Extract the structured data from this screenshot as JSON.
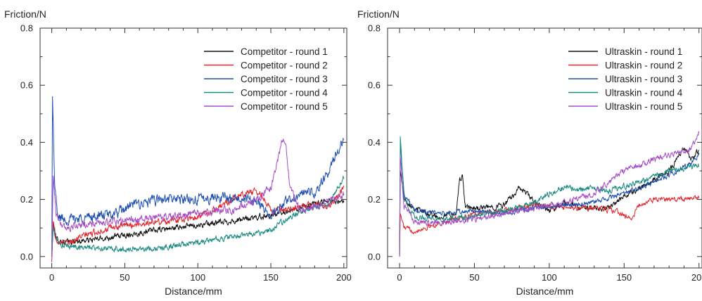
{
  "chart_data": [
    {
      "type": "line",
      "ylabel": "Friction/N",
      "xlabel": "Distance/mm",
      "xlim": [
        -8,
        202
      ],
      "ylim": [
        -0.04,
        0.8
      ],
      "xticks": [
        0,
        50,
        100,
        150,
        200
      ],
      "yticks": [
        0.0,
        0.2,
        0.4,
        0.6,
        0.8
      ],
      "xtick_labels": [
        "0",
        "50",
        "100",
        "150",
        "200"
      ],
      "ytick_labels": [
        "0.0",
        "0.2",
        "0.4",
        "0.6",
        "0.8"
      ],
      "grid": false,
      "legend_position": "top-right",
      "series": [
        {
          "name": "Competitor - round 1",
          "color": "#111111",
          "noise": 0.008,
          "points": [
            [
              0,
              0.0
            ],
            [
              1,
              0.11
            ],
            [
              3,
              0.06
            ],
            [
              10,
              0.05
            ],
            [
              30,
              0.06
            ],
            [
              50,
              0.075
            ],
            [
              75,
              0.095
            ],
            [
              100,
              0.11
            ],
            [
              125,
              0.125
            ],
            [
              150,
              0.145
            ],
            [
              175,
              0.175
            ],
            [
              190,
              0.2
            ],
            [
              200,
              0.19
            ]
          ]
        },
        {
          "name": "Competitor - round 2",
          "color": "#e3262d",
          "noise": 0.009,
          "points": [
            [
              0,
              -0.02
            ],
            [
              1,
              0.13
            ],
            [
              3,
              0.06
            ],
            [
              10,
              0.045
            ],
            [
              20,
              0.07
            ],
            [
              40,
              0.1
            ],
            [
              60,
              0.115
            ],
            [
              80,
              0.125
            ],
            [
              100,
              0.14
            ],
            [
              110,
              0.16
            ],
            [
              120,
              0.19
            ],
            [
              130,
              0.22
            ],
            [
              140,
              0.23
            ],
            [
              145,
              0.21
            ],
            [
              150,
              0.16
            ],
            [
              160,
              0.16
            ],
            [
              175,
              0.18
            ],
            [
              190,
              0.18
            ],
            [
              200,
              0.24
            ]
          ]
        },
        {
          "name": "Competitor - round 3",
          "color": "#1f4fb3",
          "noise": 0.014,
          "points": [
            [
              0,
              0.0
            ],
            [
              0.5,
              0.56
            ],
            [
              2,
              0.25
            ],
            [
              4,
              0.14
            ],
            [
              10,
              0.13
            ],
            [
              30,
              0.14
            ],
            [
              45,
              0.15
            ],
            [
              55,
              0.18
            ],
            [
              75,
              0.2
            ],
            [
              100,
              0.2
            ],
            [
              115,
              0.21
            ],
            [
              130,
              0.2
            ],
            [
              140,
              0.2
            ],
            [
              150,
              0.14
            ],
            [
              160,
              0.19
            ],
            [
              170,
              0.22
            ],
            [
              180,
              0.22
            ],
            [
              190,
              0.3
            ],
            [
              195,
              0.36
            ],
            [
              200,
              0.41
            ]
          ]
        },
        {
          "name": "Competitor - round 4",
          "color": "#1a8a80",
          "noise": 0.008,
          "points": [
            [
              0,
              0.0
            ],
            [
              1,
              0.1
            ],
            [
              5,
              0.04
            ],
            [
              15,
              0.035
            ],
            [
              30,
              0.03
            ],
            [
              50,
              0.025
            ],
            [
              75,
              0.03
            ],
            [
              100,
              0.05
            ],
            [
              125,
              0.07
            ],
            [
              150,
              0.09
            ],
            [
              160,
              0.13
            ],
            [
              175,
              0.17
            ],
            [
              190,
              0.18
            ],
            [
              200,
              0.28
            ]
          ]
        },
        {
          "name": "Competitor - round 5",
          "color": "#a64dc7",
          "noise": 0.01,
          "points": [
            [
              0,
              0.0
            ],
            [
              1,
              0.29
            ],
            [
              3,
              0.15
            ],
            [
              8,
              0.1
            ],
            [
              20,
              0.11
            ],
            [
              40,
              0.12
            ],
            [
              60,
              0.13
            ],
            [
              80,
              0.14
            ],
            [
              100,
              0.15
            ],
            [
              115,
              0.16
            ],
            [
              125,
              0.16
            ],
            [
              140,
              0.2
            ],
            [
              150,
              0.24
            ],
            [
              155,
              0.34
            ],
            [
              158,
              0.42
            ],
            [
              160,
              0.4
            ],
            [
              163,
              0.25
            ],
            [
              170,
              0.16
            ],
            [
              185,
              0.18
            ],
            [
              200,
              0.22
            ]
          ]
        }
      ]
    },
    {
      "type": "line",
      "ylabel": "Friction/N",
      "xlabel": "Distance/mm",
      "xlim": [
        -8,
        202
      ],
      "ylim": [
        -0.04,
        0.8
      ],
      "xticks": [
        0,
        50,
        100,
        150,
        200
      ],
      "yticks": [
        0.0,
        0.2,
        0.4,
        0.6,
        0.8
      ],
      "xtick_labels": [
        "0",
        "50",
        "100",
        "150",
        "200"
      ],
      "ytick_labels": [
        "0.0",
        "0.2",
        "0.4",
        "0.6",
        "0.8"
      ],
      "grid": false,
      "legend_position": "top-right",
      "series": [
        {
          "name": "Ultraskin - round 1",
          "color": "#111111",
          "noise": 0.008,
          "points": [
            [
              0,
              0.0
            ],
            [
              0.5,
              0.3
            ],
            [
              3,
              0.2
            ],
            [
              10,
              0.17
            ],
            [
              25,
              0.14
            ],
            [
              38,
              0.15
            ],
            [
              40,
              0.27
            ],
            [
              42,
              0.28
            ],
            [
              44,
              0.17
            ],
            [
              55,
              0.17
            ],
            [
              70,
              0.18
            ],
            [
              80,
              0.24
            ],
            [
              85,
              0.22
            ],
            [
              90,
              0.19
            ],
            [
              100,
              0.16
            ],
            [
              110,
              0.19
            ],
            [
              120,
              0.17
            ],
            [
              140,
              0.17
            ],
            [
              150,
              0.21
            ],
            [
              160,
              0.24
            ],
            [
              170,
              0.27
            ],
            [
              180,
              0.3
            ],
            [
              190,
              0.38
            ],
            [
              195,
              0.34
            ],
            [
              200,
              0.37
            ]
          ]
        },
        {
          "name": "Ultraskin - round 2",
          "color": "#e3262d",
          "noise": 0.007,
          "points": [
            [
              0,
              0.0
            ],
            [
              0.5,
              0.15
            ],
            [
              3,
              0.1
            ],
            [
              10,
              0.09
            ],
            [
              30,
              0.12
            ],
            [
              50,
              0.15
            ],
            [
              70,
              0.16
            ],
            [
              90,
              0.18
            ],
            [
              110,
              0.17
            ],
            [
              130,
              0.17
            ],
            [
              145,
              0.16
            ],
            [
              155,
              0.13
            ],
            [
              160,
              0.18
            ],
            [
              170,
              0.2
            ],
            [
              180,
              0.2
            ],
            [
              190,
              0.2
            ],
            [
              200,
              0.21
            ]
          ]
        },
        {
          "name": "Ultraskin - round 3",
          "color": "#1f4fb3",
          "noise": 0.007,
          "points": [
            [
              0,
              0.0
            ],
            [
              0.5,
              0.4
            ],
            [
              3,
              0.22
            ],
            [
              10,
              0.16
            ],
            [
              30,
              0.15
            ],
            [
              50,
              0.16
            ],
            [
              70,
              0.15
            ],
            [
              90,
              0.17
            ],
            [
              110,
              0.18
            ],
            [
              130,
              0.19
            ],
            [
              150,
              0.22
            ],
            [
              170,
              0.26
            ],
            [
              185,
              0.3
            ],
            [
              195,
              0.33
            ],
            [
              200,
              0.36
            ]
          ]
        },
        {
          "name": "Ultraskin - round 4",
          "color": "#1a8a80",
          "noise": 0.008,
          "points": [
            [
              0,
              0.0
            ],
            [
              0.5,
              0.42
            ],
            [
              3,
              0.2
            ],
            [
              10,
              0.14
            ],
            [
              30,
              0.13
            ],
            [
              50,
              0.14
            ],
            [
              70,
              0.16
            ],
            [
              90,
              0.19
            ],
            [
              100,
              0.22
            ],
            [
              110,
              0.24
            ],
            [
              125,
              0.24
            ],
            [
              140,
              0.23
            ],
            [
              160,
              0.26
            ],
            [
              180,
              0.3
            ],
            [
              200,
              0.32
            ]
          ]
        },
        {
          "name": "Ultraskin - round 5",
          "color": "#a64dc7",
          "noise": 0.008,
          "points": [
            [
              0,
              0.0
            ],
            [
              0.5,
              0.35
            ],
            [
              3,
              0.18
            ],
            [
              10,
              0.12
            ],
            [
              30,
              0.12
            ],
            [
              50,
              0.13
            ],
            [
              70,
              0.15
            ],
            [
              90,
              0.17
            ],
            [
              110,
              0.19
            ],
            [
              130,
              0.22
            ],
            [
              150,
              0.3
            ],
            [
              170,
              0.34
            ],
            [
              185,
              0.36
            ],
            [
              195,
              0.38
            ],
            [
              200,
              0.44
            ]
          ]
        }
      ]
    }
  ]
}
